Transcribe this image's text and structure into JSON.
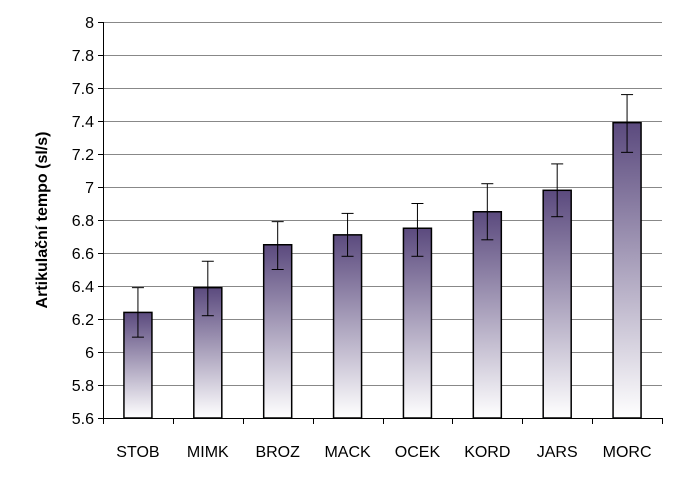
{
  "chart_data": {
    "type": "bar",
    "title": "",
    "xlabel": "",
    "ylabel": "Artikulační tempo (sl/s)",
    "ylim": [
      5.6,
      8
    ],
    "ytick_step": 0.2,
    "yticks": [
      "5.6",
      "5.8",
      "6",
      "6.2",
      "6.4",
      "6.6",
      "6.8",
      "7",
      "7.2",
      "7.4",
      "7.6",
      "7.8",
      "8"
    ],
    "grid": true,
    "legend": "none",
    "categories": [
      "STOB",
      "MIMK",
      "BROZ",
      "MACK",
      "OCEK",
      "KORD",
      "JARS",
      "MORC"
    ],
    "values": [
      6.24,
      6.39,
      6.65,
      6.71,
      6.75,
      6.85,
      6.98,
      7.39
    ],
    "error_low": [
      6.09,
      6.22,
      6.5,
      6.58,
      6.58,
      6.68,
      6.82,
      7.21
    ],
    "error_high": [
      6.39,
      6.55,
      6.79,
      6.84,
      6.9,
      7.02,
      7.14,
      7.56
    ],
    "colors": {
      "bar_top": "#5b4a7e",
      "bar_bottom": "#ffffff",
      "bar_outline": "#000000",
      "grid": "#888888",
      "axis": "#000000"
    }
  }
}
